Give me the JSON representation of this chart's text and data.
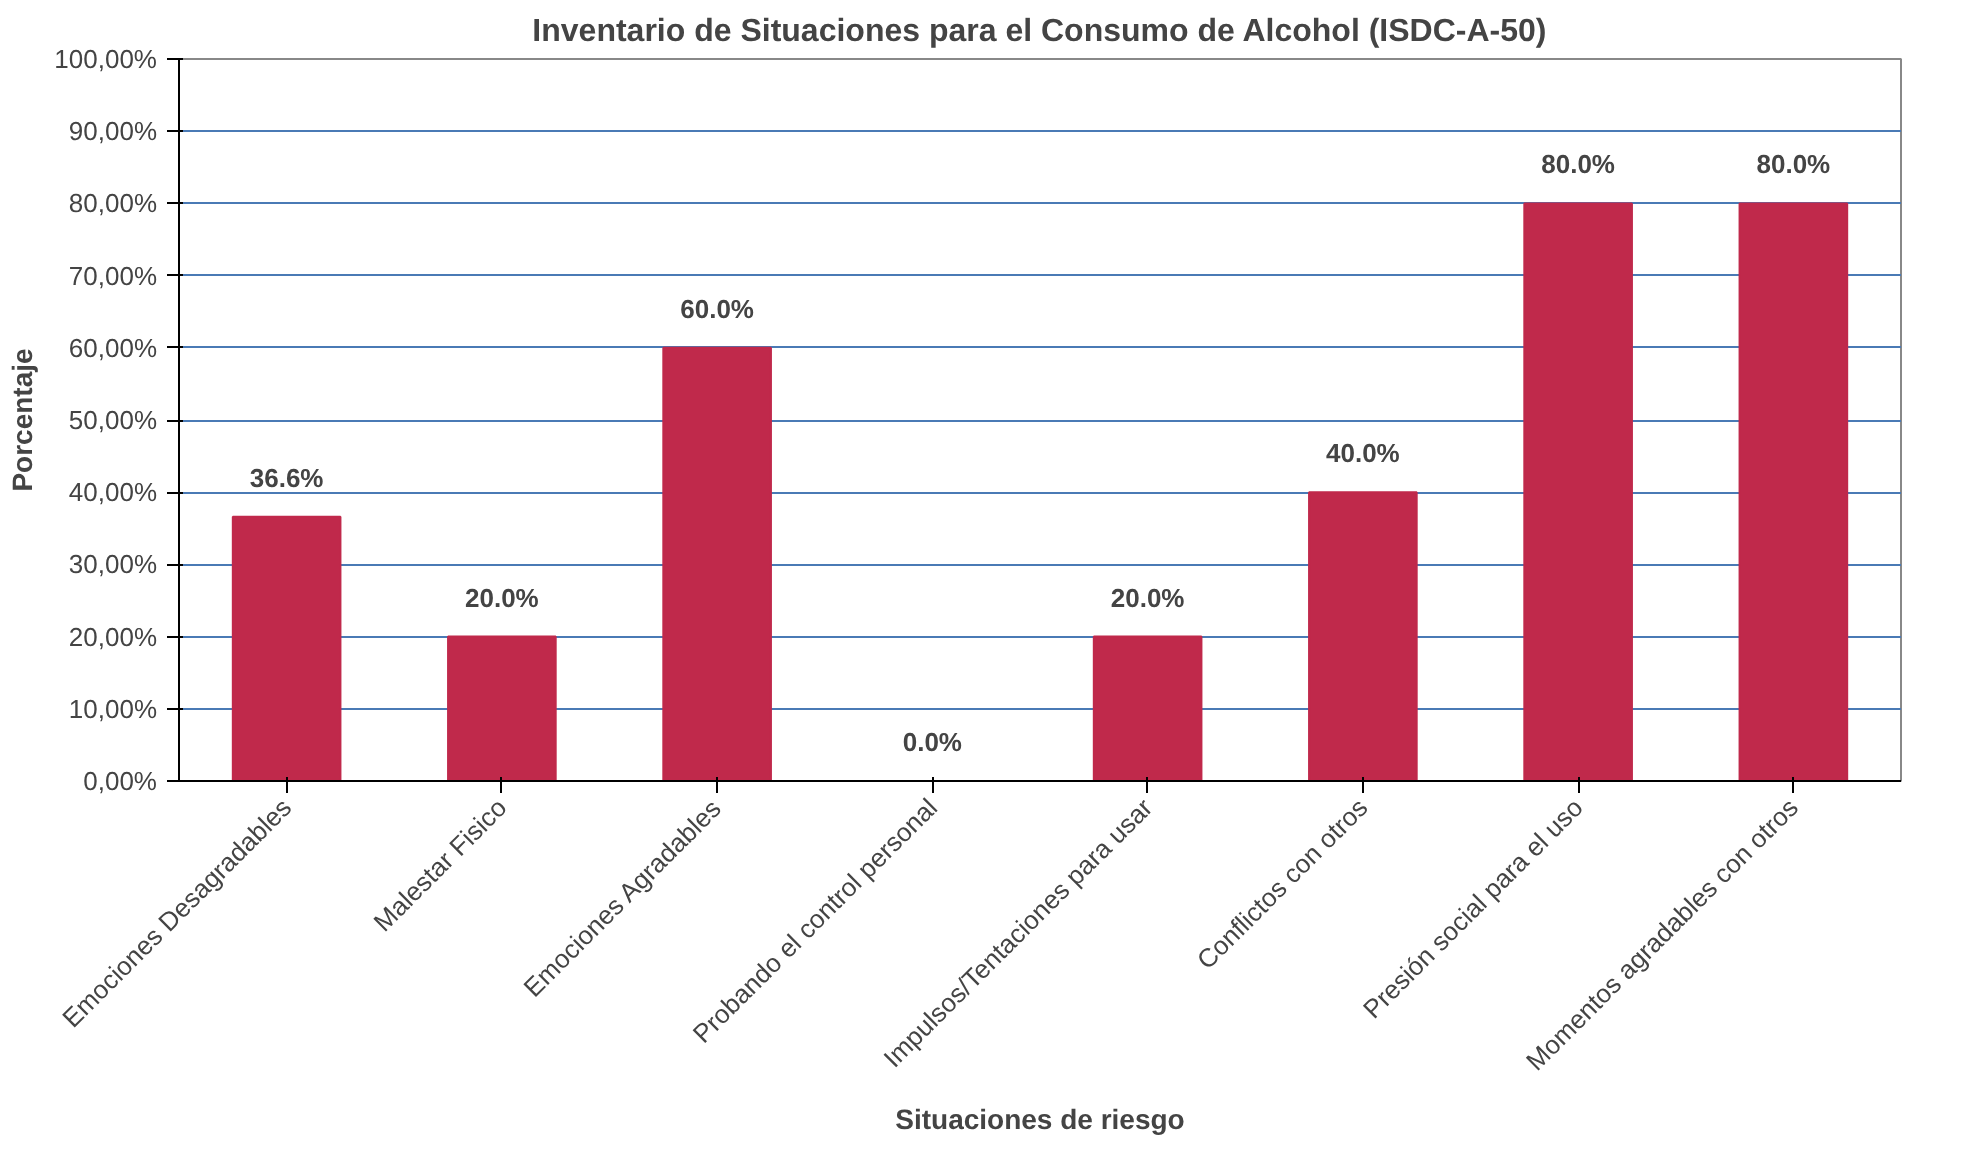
{
  "chart_data": {
    "type": "bar",
    "title": "Inventario de Situaciones para el Consumo de Alcohol (ISDC-A-50)",
    "xlabel": "Situaciones de riesgo",
    "ylabel": "Porcentaje",
    "categories": [
      "Emociones Desagradables",
      "Malestar Fisico",
      "Emociones Agradables",
      "Probando el control personal",
      "Impulsos/Tentaciones para usar",
      "Conflictos con otros",
      "Presión social para el uso",
      "Momentos agradables con otros"
    ],
    "values": [
      36.6,
      20.0,
      60.0,
      0.0,
      20.0,
      40.0,
      80.0,
      80.0
    ],
    "value_labels": [
      "36.6%",
      "20.0%",
      "60.0%",
      "0.0%",
      "20.0%",
      "40.0%",
      "80.0%",
      "80.0%"
    ],
    "color": "#c0294b",
    "ylim": [
      0,
      100
    ],
    "yticks": [
      {
        "value": 0,
        "label": "0,00%"
      },
      {
        "value": 10,
        "label": "10,00%"
      },
      {
        "value": 20,
        "label": "20,00%"
      },
      {
        "value": 30,
        "label": "30,00%"
      },
      {
        "value": 40,
        "label": "40,00%"
      },
      {
        "value": 50,
        "label": "50,00%"
      },
      {
        "value": 60,
        "label": "60,00%"
      },
      {
        "value": 70,
        "label": "70,00%"
      },
      {
        "value": 80,
        "label": "80,00%"
      },
      {
        "value": 90,
        "label": "90,00%"
      },
      {
        "value": 100,
        "label": "100,00%"
      }
    ],
    "grid": "y"
  }
}
